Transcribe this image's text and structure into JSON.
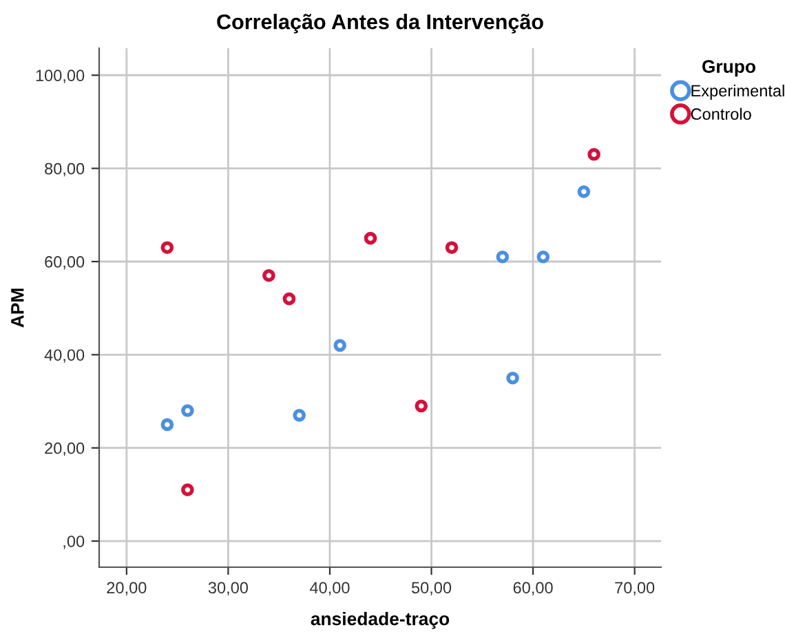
{
  "chart_data": {
    "type": "scatter",
    "title": "Correlação Antes da Intervenção",
    "xlabel": "ansiedade-traço",
    "ylabel": "APM",
    "legend_title": "Grupo",
    "legend": "top right",
    "grid": true,
    "marker": "circle",
    "xlim": [
      17.3,
      72.6
    ],
    "ylim": [
      -5.6,
      105.8
    ],
    "xticks": [
      {
        "value": 20,
        "label": "20,00"
      },
      {
        "value": 30,
        "label": "30,00"
      },
      {
        "value": 40,
        "label": "40,00"
      },
      {
        "value": 50,
        "label": "50,00"
      },
      {
        "value": 60,
        "label": "60,00"
      },
      {
        "value": 70,
        "label": "70,00"
      }
    ],
    "yticks": [
      {
        "value": 0,
        "label": ",00"
      },
      {
        "value": 20,
        "label": "20,00"
      },
      {
        "value": 40,
        "label": "40,00"
      },
      {
        "value": 60,
        "label": "60,00"
      },
      {
        "value": 80,
        "label": "80,00"
      },
      {
        "value": 100,
        "label": "100,00"
      }
    ],
    "series": [
      {
        "name": "Experimental",
        "color": "#4a90e2",
        "x": [
          24,
          26,
          37,
          41,
          57,
          58,
          61,
          65
        ],
        "values": [
          25,
          28,
          27,
          42,
          61,
          35,
          61,
          75
        ]
      },
      {
        "name": "Controlo",
        "color": "#d5113a",
        "x": [
          24,
          26,
          34,
          36,
          44,
          49,
          52,
          66
        ],
        "values": [
          63,
          11,
          57,
          52,
          65,
          29,
          63,
          83
        ]
      }
    ]
  }
}
